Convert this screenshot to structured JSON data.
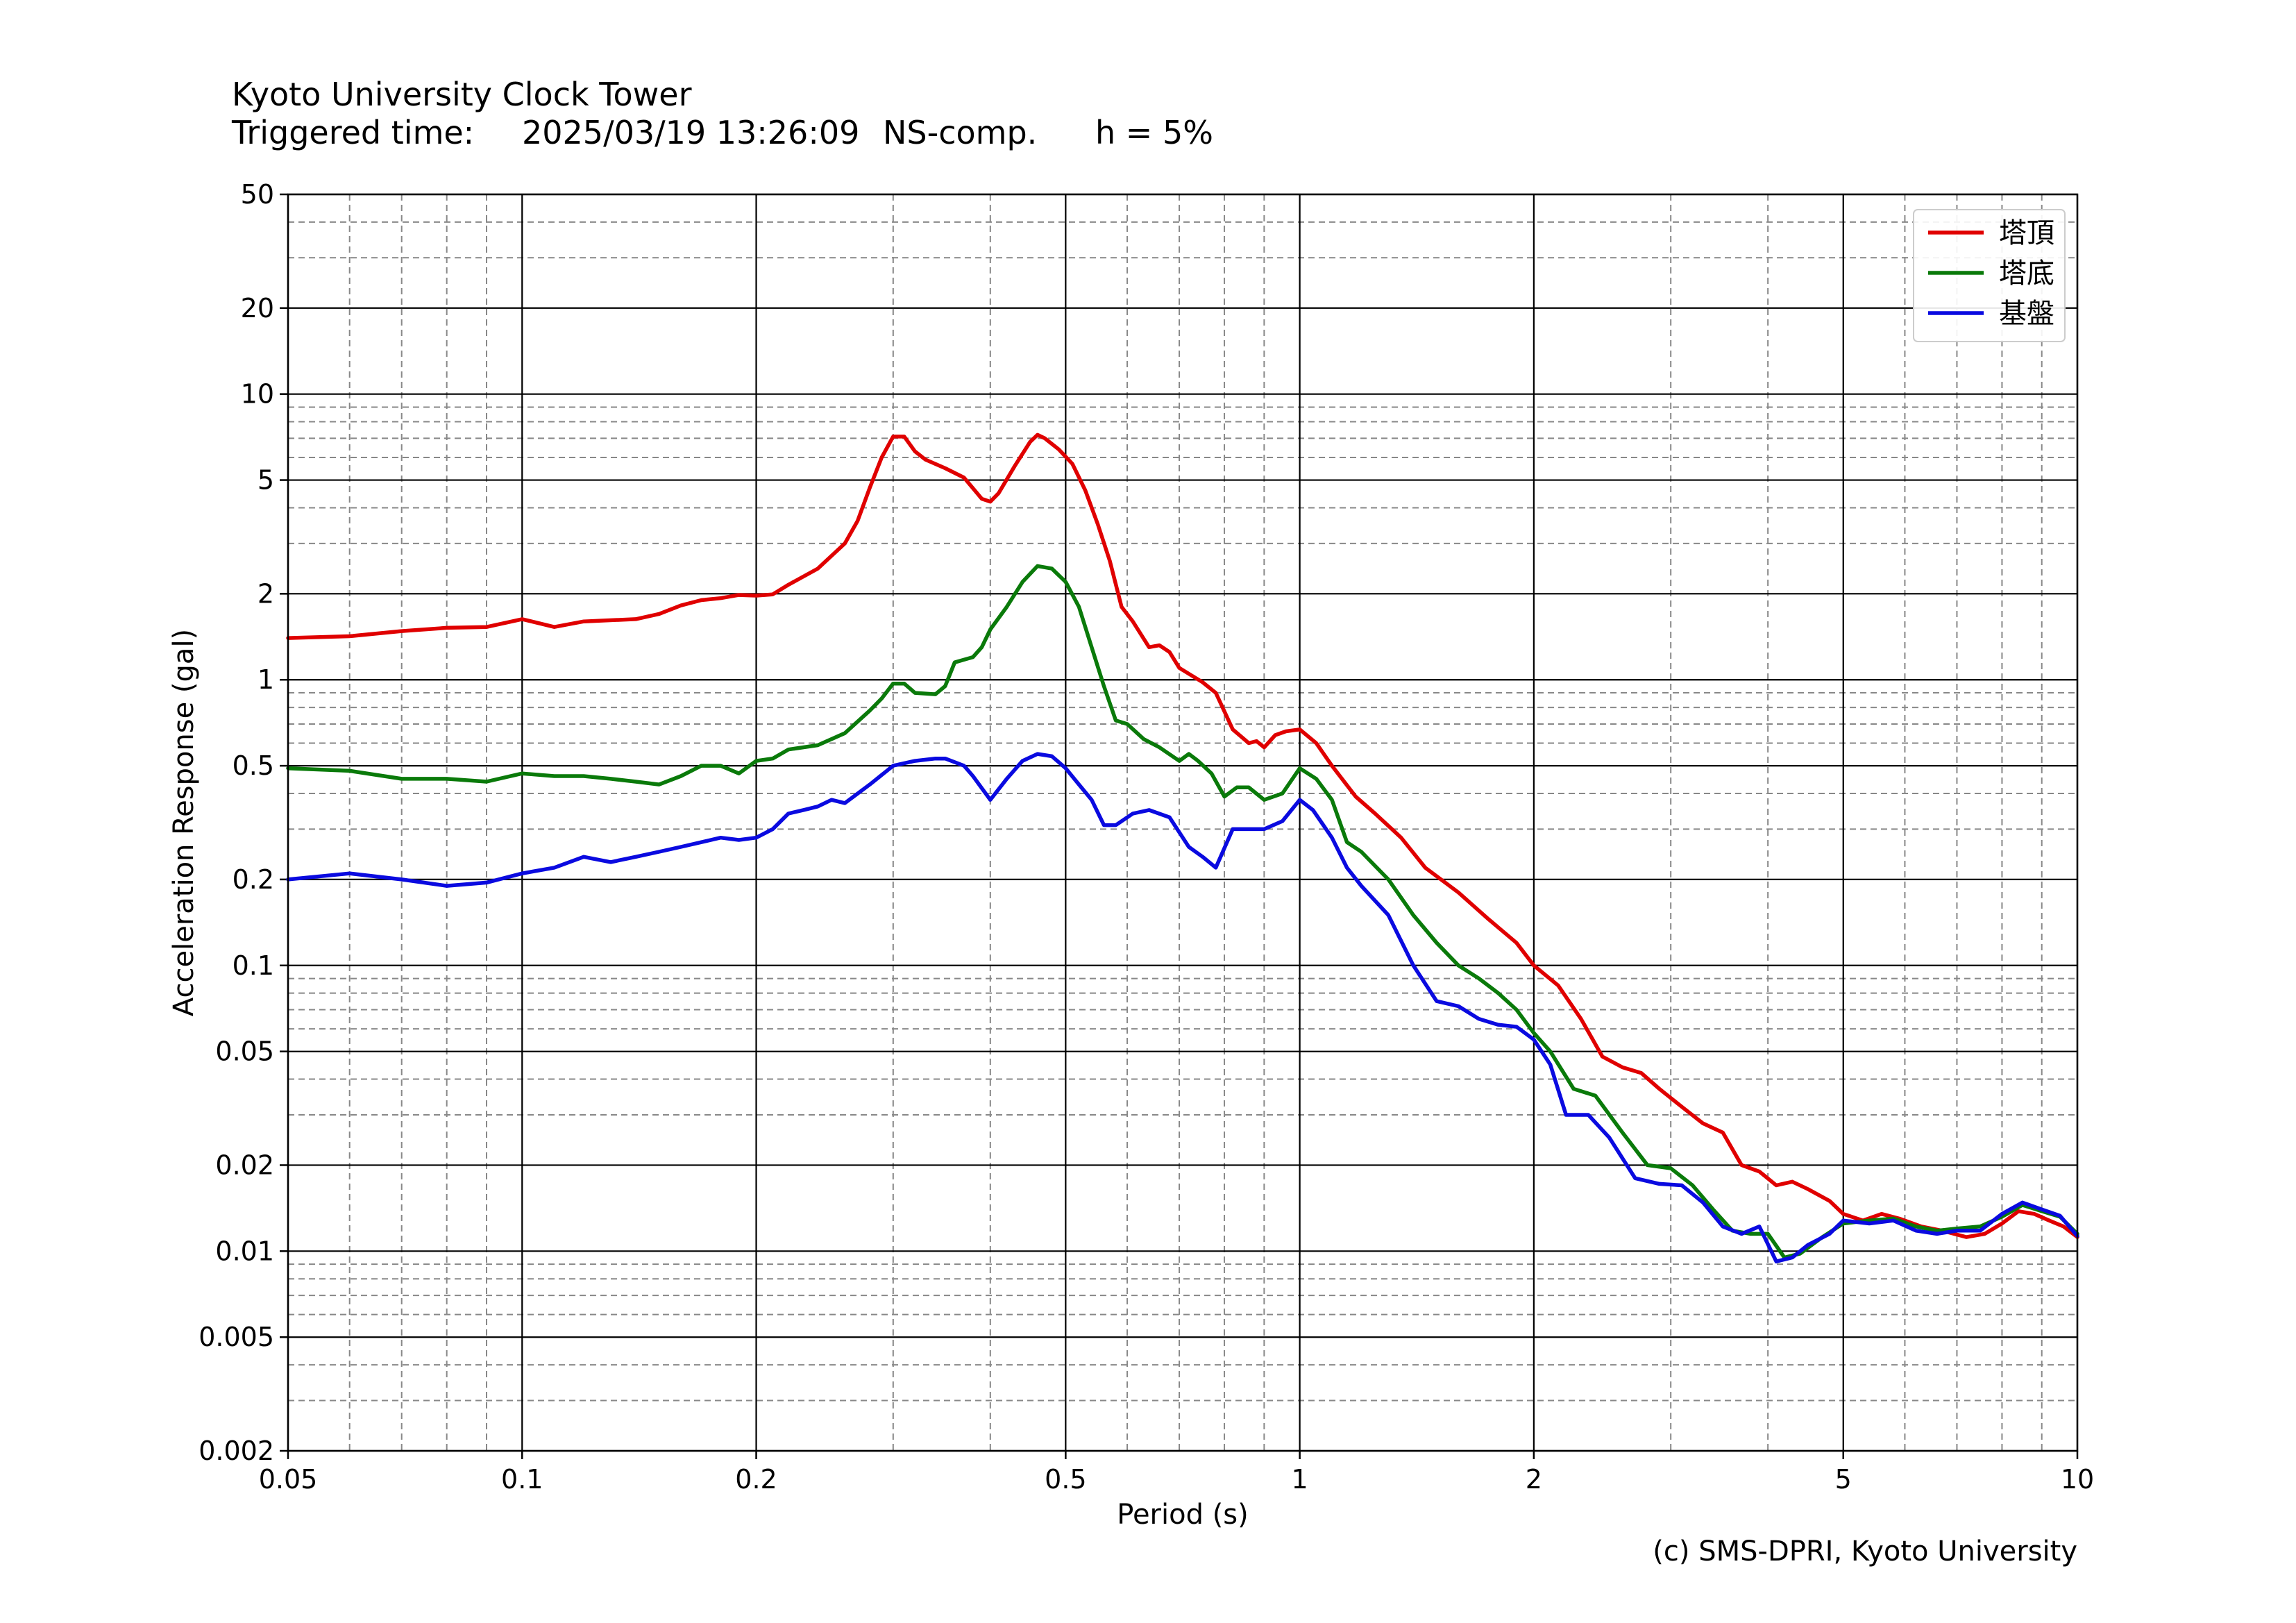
{
  "header": {
    "title": "Kyoto University Clock Tower",
    "triggered_label": "Triggered time:",
    "triggered_value": "2025/03/19 13:26:09",
    "component": "NS-comp.",
    "damping": "h = 5%"
  },
  "credit": "(c) SMS-DPRI, Kyoto University",
  "colors": {
    "red": "#e00000",
    "green": "#0a7a0a",
    "blue": "#0a0ae0",
    "grid_major": "#000000",
    "grid_minor": "#888888"
  },
  "chart_data": {
    "type": "line",
    "xlabel": "Period (s)",
    "ylabel": "Acceleration Response (gal)",
    "x_scale": "log",
    "y_scale": "log",
    "xlim": [
      0.05,
      10
    ],
    "ylim": [
      0.002,
      50
    ],
    "grid": true,
    "legend_position": "top-right",
    "x_ticks": [
      {
        "v": 0.05,
        "label": "0.05"
      },
      {
        "v": 0.1,
        "label": "0.1"
      },
      {
        "v": 0.2,
        "label": "0.2"
      },
      {
        "v": 0.5,
        "label": "0.5"
      },
      {
        "v": 1,
        "label": "1"
      },
      {
        "v": 2,
        "label": "2"
      },
      {
        "v": 5,
        "label": "5"
      },
      {
        "v": 10,
        "label": "10"
      }
    ],
    "y_ticks": [
      {
        "v": 50,
        "label": "50"
      },
      {
        "v": 20,
        "label": "20"
      },
      {
        "v": 10,
        "label": "10"
      },
      {
        "v": 5,
        "label": "5"
      },
      {
        "v": 2,
        "label": "2"
      },
      {
        "v": 1,
        "label": "1"
      },
      {
        "v": 0.5,
        "label": "0.5"
      },
      {
        "v": 0.2,
        "label": "0.2"
      },
      {
        "v": 0.1,
        "label": "0.1"
      },
      {
        "v": 0.05,
        "label": "0.05"
      },
      {
        "v": 0.02,
        "label": "0.02"
      },
      {
        "v": 0.01,
        "label": "0.01"
      },
      {
        "v": 0.005,
        "label": "0.005"
      },
      {
        "v": 0.002,
        "label": "0.002"
      }
    ],
    "series": [
      {
        "name": "塔頂",
        "color": "#e00000",
        "points": [
          [
            0.05,
            1.4
          ],
          [
            0.06,
            1.42
          ],
          [
            0.07,
            1.48
          ],
          [
            0.08,
            1.52
          ],
          [
            0.09,
            1.53
          ],
          [
            0.1,
            1.63
          ],
          [
            0.11,
            1.53
          ],
          [
            0.12,
            1.6
          ],
          [
            0.14,
            1.63
          ],
          [
            0.15,
            1.7
          ],
          [
            0.16,
            1.82
          ],
          [
            0.17,
            1.9
          ],
          [
            0.18,
            1.93
          ],
          [
            0.19,
            1.98
          ],
          [
            0.2,
            1.97
          ],
          [
            0.21,
            1.99
          ],
          [
            0.22,
            2.15
          ],
          [
            0.24,
            2.45
          ],
          [
            0.26,
            3.0
          ],
          [
            0.27,
            3.6
          ],
          [
            0.28,
            4.7
          ],
          [
            0.29,
            6.0
          ],
          [
            0.3,
            7.1
          ],
          [
            0.31,
            7.1
          ],
          [
            0.32,
            6.3
          ],
          [
            0.33,
            5.9
          ],
          [
            0.35,
            5.5
          ],
          [
            0.37,
            5.1
          ],
          [
            0.39,
            4.3
          ],
          [
            0.4,
            4.2
          ],
          [
            0.41,
            4.5
          ],
          [
            0.43,
            5.6
          ],
          [
            0.45,
            6.8
          ],
          [
            0.46,
            7.2
          ],
          [
            0.47,
            7.0
          ],
          [
            0.49,
            6.4
          ],
          [
            0.51,
            5.7
          ],
          [
            0.53,
            4.6
          ],
          [
            0.55,
            3.5
          ],
          [
            0.57,
            2.6
          ],
          [
            0.59,
            1.8
          ],
          [
            0.61,
            1.6
          ],
          [
            0.64,
            1.3
          ],
          [
            0.66,
            1.32
          ],
          [
            0.68,
            1.25
          ],
          [
            0.7,
            1.1
          ],
          [
            0.75,
            0.98
          ],
          [
            0.78,
            0.9
          ],
          [
            0.82,
            0.67
          ],
          [
            0.86,
            0.6
          ],
          [
            0.88,
            0.61
          ],
          [
            0.9,
            0.58
          ],
          [
            0.93,
            0.64
          ],
          [
            0.96,
            0.66
          ],
          [
            1.0,
            0.67
          ],
          [
            1.05,
            0.6
          ],
          [
            1.1,
            0.5
          ],
          [
            1.18,
            0.39
          ],
          [
            1.25,
            0.34
          ],
          [
            1.35,
            0.28
          ],
          [
            1.45,
            0.22
          ],
          [
            1.6,
            0.18
          ],
          [
            1.75,
            0.145
          ],
          [
            1.9,
            0.12
          ],
          [
            2.0,
            0.1
          ],
          [
            2.15,
            0.085
          ],
          [
            2.3,
            0.065
          ],
          [
            2.45,
            0.048
          ],
          [
            2.6,
            0.044
          ],
          [
            2.75,
            0.042
          ],
          [
            2.9,
            0.037
          ],
          [
            3.1,
            0.032
          ],
          [
            3.3,
            0.028
          ],
          [
            3.5,
            0.026
          ],
          [
            3.7,
            0.02
          ],
          [
            3.9,
            0.019
          ],
          [
            4.1,
            0.017
          ],
          [
            4.3,
            0.0175
          ],
          [
            4.5,
            0.0165
          ],
          [
            4.8,
            0.015
          ],
          [
            5.0,
            0.0135
          ],
          [
            5.3,
            0.0128
          ],
          [
            5.6,
            0.0135
          ],
          [
            5.9,
            0.013
          ],
          [
            6.3,
            0.0122
          ],
          [
            6.7,
            0.0118
          ],
          [
            7.2,
            0.0112
          ],
          [
            7.6,
            0.0115
          ],
          [
            8.0,
            0.0125
          ],
          [
            8.4,
            0.0138
          ],
          [
            8.8,
            0.0135
          ],
          [
            9.2,
            0.0128
          ],
          [
            9.6,
            0.0122
          ],
          [
            10.0,
            0.0112
          ]
        ]
      },
      {
        "name": "塔底",
        "color": "#0a7a0a",
        "points": [
          [
            0.05,
            0.49
          ],
          [
            0.06,
            0.48
          ],
          [
            0.07,
            0.45
          ],
          [
            0.08,
            0.45
          ],
          [
            0.09,
            0.44
          ],
          [
            0.1,
            0.47
          ],
          [
            0.11,
            0.46
          ],
          [
            0.12,
            0.46
          ],
          [
            0.13,
            0.45
          ],
          [
            0.14,
            0.44
          ],
          [
            0.15,
            0.43
          ],
          [
            0.16,
            0.46
          ],
          [
            0.17,
            0.5
          ],
          [
            0.18,
            0.5
          ],
          [
            0.19,
            0.47
          ],
          [
            0.2,
            0.52
          ],
          [
            0.21,
            0.53
          ],
          [
            0.22,
            0.57
          ],
          [
            0.24,
            0.59
          ],
          [
            0.26,
            0.65
          ],
          [
            0.28,
            0.78
          ],
          [
            0.29,
            0.86
          ],
          [
            0.3,
            0.97
          ],
          [
            0.31,
            0.97
          ],
          [
            0.32,
            0.9
          ],
          [
            0.34,
            0.89
          ],
          [
            0.35,
            0.95
          ],
          [
            0.36,
            1.15
          ],
          [
            0.38,
            1.2
          ],
          [
            0.39,
            1.3
          ],
          [
            0.4,
            1.5
          ],
          [
            0.42,
            1.8
          ],
          [
            0.44,
            2.2
          ],
          [
            0.46,
            2.5
          ],
          [
            0.48,
            2.45
          ],
          [
            0.5,
            2.2
          ],
          [
            0.52,
            1.8
          ],
          [
            0.54,
            1.3
          ],
          [
            0.56,
            0.95
          ],
          [
            0.58,
            0.72
          ],
          [
            0.6,
            0.7
          ],
          [
            0.63,
            0.62
          ],
          [
            0.66,
            0.58
          ],
          [
            0.7,
            0.52
          ],
          [
            0.72,
            0.55
          ],
          [
            0.74,
            0.52
          ],
          [
            0.77,
            0.47
          ],
          [
            0.8,
            0.39
          ],
          [
            0.83,
            0.42
          ],
          [
            0.86,
            0.42
          ],
          [
            0.9,
            0.38
          ],
          [
            0.95,
            0.4
          ],
          [
            1.0,
            0.49
          ],
          [
            1.05,
            0.45
          ],
          [
            1.1,
            0.38
          ],
          [
            1.15,
            0.27
          ],
          [
            1.2,
            0.25
          ],
          [
            1.3,
            0.2
          ],
          [
            1.4,
            0.15
          ],
          [
            1.5,
            0.12
          ],
          [
            1.6,
            0.1
          ],
          [
            1.7,
            0.09
          ],
          [
            1.8,
            0.08
          ],
          [
            1.9,
            0.07
          ],
          [
            2.0,
            0.058
          ],
          [
            2.1,
            0.05
          ],
          [
            2.25,
            0.037
          ],
          [
            2.4,
            0.035
          ],
          [
            2.6,
            0.026
          ],
          [
            2.8,
            0.02
          ],
          [
            3.0,
            0.0195
          ],
          [
            3.2,
            0.017
          ],
          [
            3.4,
            0.014
          ],
          [
            3.6,
            0.0118
          ],
          [
            3.8,
            0.0115
          ],
          [
            4.0,
            0.0115
          ],
          [
            4.2,
            0.0095
          ],
          [
            4.4,
            0.0098
          ],
          [
            4.7,
            0.0112
          ],
          [
            5.0,
            0.0125
          ],
          [
            5.4,
            0.0128
          ],
          [
            5.8,
            0.013
          ],
          [
            6.2,
            0.0122
          ],
          [
            6.6,
            0.0118
          ],
          [
            7.0,
            0.012
          ],
          [
            7.5,
            0.0122
          ],
          [
            8.0,
            0.0132
          ],
          [
            8.5,
            0.0145
          ],
          [
            9.0,
            0.0138
          ],
          [
            9.5,
            0.0132
          ],
          [
            10.0,
            0.0115
          ]
        ]
      },
      {
        "name": "基盤",
        "color": "#0a0ae0",
        "points": [
          [
            0.05,
            0.2
          ],
          [
            0.06,
            0.21
          ],
          [
            0.07,
            0.2
          ],
          [
            0.08,
            0.19
          ],
          [
            0.09,
            0.195
          ],
          [
            0.1,
            0.21
          ],
          [
            0.11,
            0.22
          ],
          [
            0.12,
            0.24
          ],
          [
            0.13,
            0.23
          ],
          [
            0.14,
            0.24
          ],
          [
            0.15,
            0.25
          ],
          [
            0.16,
            0.26
          ],
          [
            0.17,
            0.27
          ],
          [
            0.18,
            0.28
          ],
          [
            0.19,
            0.275
          ],
          [
            0.2,
            0.28
          ],
          [
            0.21,
            0.3
          ],
          [
            0.22,
            0.34
          ],
          [
            0.23,
            0.35
          ],
          [
            0.24,
            0.36
          ],
          [
            0.25,
            0.38
          ],
          [
            0.26,
            0.37
          ],
          [
            0.28,
            0.43
          ],
          [
            0.3,
            0.5
          ],
          [
            0.32,
            0.52
          ],
          [
            0.34,
            0.53
          ],
          [
            0.35,
            0.53
          ],
          [
            0.37,
            0.5
          ],
          [
            0.38,
            0.46
          ],
          [
            0.4,
            0.38
          ],
          [
            0.42,
            0.45
          ],
          [
            0.44,
            0.52
          ],
          [
            0.46,
            0.55
          ],
          [
            0.48,
            0.54
          ],
          [
            0.5,
            0.49
          ],
          [
            0.52,
            0.43
          ],
          [
            0.54,
            0.38
          ],
          [
            0.56,
            0.31
          ],
          [
            0.58,
            0.31
          ],
          [
            0.61,
            0.34
          ],
          [
            0.64,
            0.35
          ],
          [
            0.68,
            0.33
          ],
          [
            0.72,
            0.26
          ],
          [
            0.75,
            0.24
          ],
          [
            0.78,
            0.22
          ],
          [
            0.82,
            0.3
          ],
          [
            0.86,
            0.3
          ],
          [
            0.9,
            0.3
          ],
          [
            0.95,
            0.32
          ],
          [
            1.0,
            0.38
          ],
          [
            1.04,
            0.35
          ],
          [
            1.1,
            0.28
          ],
          [
            1.15,
            0.22
          ],
          [
            1.2,
            0.19
          ],
          [
            1.3,
            0.15
          ],
          [
            1.4,
            0.1
          ],
          [
            1.5,
            0.075
          ],
          [
            1.6,
            0.072
          ],
          [
            1.7,
            0.065
          ],
          [
            1.8,
            0.062
          ],
          [
            1.9,
            0.061
          ],
          [
            2.0,
            0.055
          ],
          [
            2.1,
            0.045
          ],
          [
            2.2,
            0.03
          ],
          [
            2.35,
            0.03
          ],
          [
            2.5,
            0.025
          ],
          [
            2.7,
            0.018
          ],
          [
            2.9,
            0.0172
          ],
          [
            3.1,
            0.017
          ],
          [
            3.3,
            0.0148
          ],
          [
            3.5,
            0.0122
          ],
          [
            3.7,
            0.0115
          ],
          [
            3.9,
            0.0122
          ],
          [
            4.1,
            0.0092
          ],
          [
            4.3,
            0.0095
          ],
          [
            4.5,
            0.0105
          ],
          [
            4.8,
            0.0115
          ],
          [
            5.0,
            0.0128
          ],
          [
            5.4,
            0.0125
          ],
          [
            5.8,
            0.0128
          ],
          [
            6.2,
            0.0118
          ],
          [
            6.6,
            0.0115
          ],
          [
            7.0,
            0.0118
          ],
          [
            7.5,
            0.0118
          ],
          [
            8.0,
            0.0135
          ],
          [
            8.5,
            0.0148
          ],
          [
            9.0,
            0.014
          ],
          [
            9.5,
            0.0133
          ],
          [
            10.0,
            0.0113
          ]
        ]
      }
    ]
  }
}
